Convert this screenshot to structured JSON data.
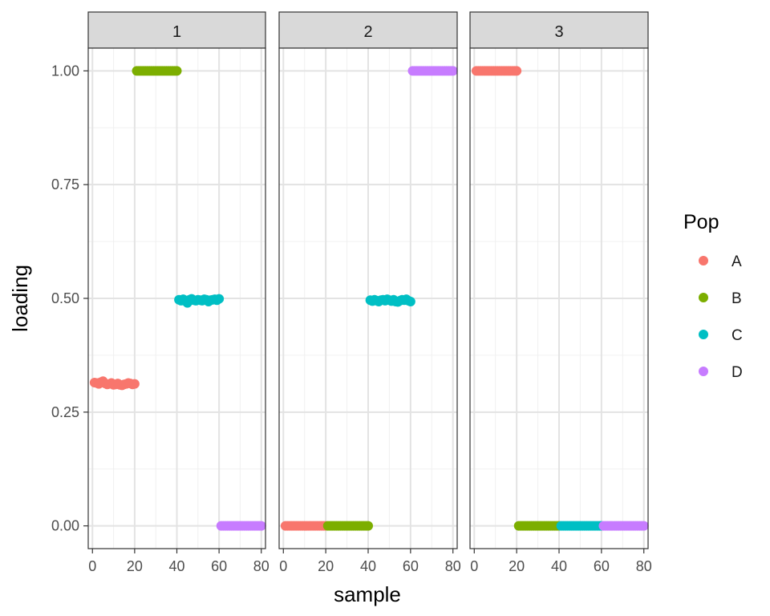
{
  "chart_data": {
    "type": "scatter",
    "facet_label": "",
    "xlabel": "sample",
    "ylabel": "loading",
    "xlim": [
      -2,
      82
    ],
    "ylim": [
      -0.05,
      1.05
    ],
    "x_ticks": [
      0,
      20,
      40,
      60,
      80
    ],
    "x_tick_labels": [
      "0",
      "20",
      "40",
      "60",
      "80"
    ],
    "y_ticks": [
      0,
      0.25,
      0.5,
      0.75,
      1
    ],
    "y_tick_labels": [
      "0.00",
      "0.25",
      "0.50",
      "0.75",
      "1.00"
    ],
    "grid": true,
    "legend": {
      "title": "Pop",
      "placement": "right",
      "entries": [
        {
          "label": "A",
          "color": "#F8766D"
        },
        {
          "label": "B",
          "color": "#7CAE00"
        },
        {
          "label": "C",
          "color": "#00BFC4"
        },
        {
          "label": "D",
          "color": "#C77CFF"
        }
      ]
    },
    "panels": [
      {
        "label": "1",
        "groups": [
          {
            "pop": "A",
            "x_start": 1,
            "x_end": 20,
            "y": [
              0.315,
              0.314,
              0.312,
              0.316,
              0.318,
              0.313,
              0.311,
              0.312,
              0.314,
              0.31,
              0.311,
              0.313,
              0.31,
              0.309,
              0.311,
              0.312,
              0.314,
              0.313,
              0.311,
              0.312
            ]
          },
          {
            "pop": "B",
            "x_start": 21,
            "x_end": 40,
            "y": [
              1,
              1,
              1,
              1,
              1,
              1,
              1,
              1,
              1,
              1,
              1,
              1,
              1,
              1,
              1,
              1,
              1,
              1,
              1,
              1
            ]
          },
          {
            "pop": "C",
            "x_start": 41,
            "x_end": 60,
            "y": [
              0.497,
              0.495,
              0.498,
              0.494,
              0.49,
              0.497,
              0.499,
              0.496,
              0.495,
              0.497,
              0.496,
              0.495,
              0.498,
              0.497,
              0.493,
              0.496,
              0.497,
              0.498,
              0.496,
              0.499
            ]
          },
          {
            "pop": "D",
            "x_start": 61,
            "x_end": 80,
            "y": [
              0,
              0,
              0,
              0,
              0,
              0,
              0,
              0,
              0,
              0,
              0,
              0,
              0,
              0,
              0,
              0,
              0,
              0,
              0,
              0
            ]
          }
        ]
      },
      {
        "label": "2",
        "groups": [
          {
            "pop": "A",
            "x_start": 1,
            "x_end": 20,
            "y": [
              0,
              0,
              0,
              0,
              0,
              0,
              0,
              0,
              0,
              0,
              0,
              0,
              0,
              0,
              0,
              0,
              0,
              0,
              0,
              0
            ]
          },
          {
            "pop": "B",
            "x_start": 21,
            "x_end": 40,
            "y": [
              0,
              0,
              0,
              0,
              0,
              0,
              0,
              0,
              0,
              0,
              0,
              0,
              0,
              0,
              0,
              0,
              0,
              0,
              0,
              0
            ]
          },
          {
            "pop": "C",
            "x_start": 41,
            "x_end": 60,
            "y": [
              0.496,
              0.494,
              0.497,
              0.495,
              0.493,
              0.496,
              0.497,
              0.495,
              0.498,
              0.496,
              0.494,
              0.497,
              0.493,
              0.492,
              0.495,
              0.497,
              0.496,
              0.498,
              0.495,
              0.493
            ]
          },
          {
            "pop": "D",
            "x_start": 61,
            "x_end": 80,
            "y": [
              1,
              1,
              1,
              1,
              1,
              1,
              1,
              1,
              1,
              1,
              1,
              1,
              1,
              1,
              1,
              1,
              1,
              1,
              1,
              1
            ]
          }
        ]
      },
      {
        "label": "3",
        "groups": [
          {
            "pop": "A",
            "x_start": 1,
            "x_end": 20,
            "y": [
              1,
              1,
              1,
              1,
              1,
              1,
              1,
              1,
              1,
              1,
              1,
              1,
              1,
              1,
              1,
              1,
              1,
              1,
              1,
              1
            ]
          },
          {
            "pop": "B",
            "x_start": 21,
            "x_end": 40,
            "y": [
              0,
              0,
              0,
              0,
              0,
              0,
              0,
              0,
              0,
              0,
              0,
              0,
              0,
              0,
              0,
              0,
              0,
              0,
              0,
              0
            ]
          },
          {
            "pop": "C",
            "x_start": 41,
            "x_end": 60,
            "y": [
              0,
              0,
              0,
              0,
              0,
              0,
              0,
              0,
              0,
              0,
              0,
              0,
              0,
              0,
              0,
              0,
              0,
              0,
              0,
              0
            ]
          },
          {
            "pop": "D",
            "x_start": 61,
            "x_end": 80,
            "y": [
              0,
              0,
              0,
              0,
              0,
              0,
              0,
              0,
              0,
              0,
              0,
              0,
              0,
              0,
              0,
              0,
              0,
              0,
              0,
              0
            ]
          }
        ]
      }
    ]
  }
}
